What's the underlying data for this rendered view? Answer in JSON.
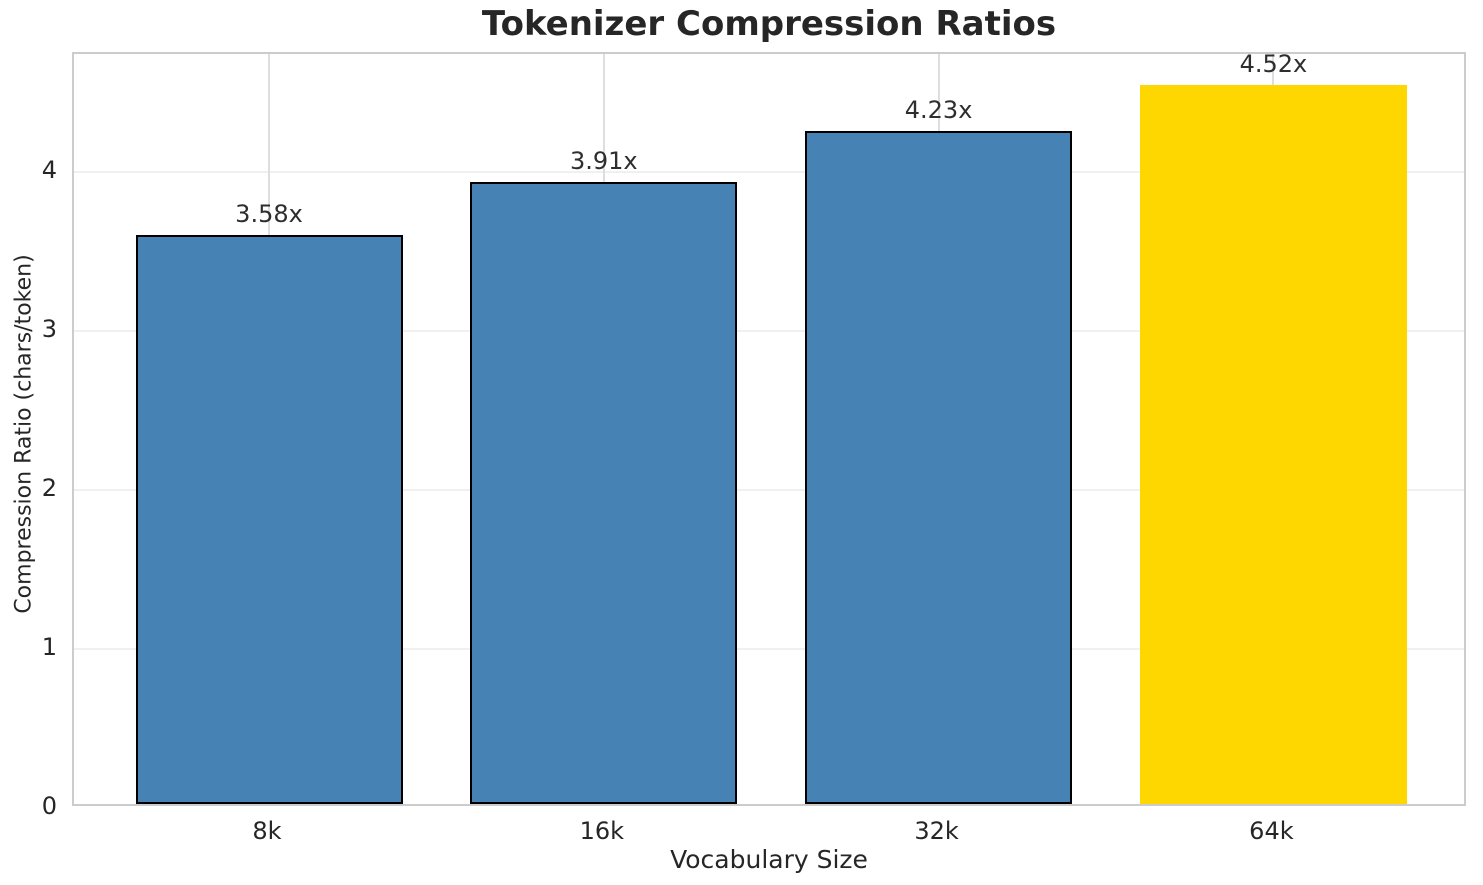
{
  "chart_data": {
    "type": "bar",
    "title": "Tokenizer Compression Ratios",
    "xlabel": "Vocabulary Size",
    "ylabel": "Compression Ratio (chars/token)",
    "categories": [
      "8k",
      "16k",
      "32k",
      "64k"
    ],
    "values": [
      3.58,
      3.91,
      4.23,
      4.52
    ],
    "bar_labels": [
      "3.58x",
      "3.91x",
      "4.23x",
      "4.52x"
    ],
    "bar_colors": [
      "#4682b4",
      "#4682b4",
      "#4682b4",
      "#ffd700"
    ],
    "bar_edge_colors": [
      "#000000",
      "#000000",
      "#000000",
      "none"
    ],
    "base_color": "#4682b4",
    "highlight_color": "#ffd700",
    "yticks": [
      0,
      1,
      2,
      3,
      4
    ],
    "ylim": [
      0,
      4.74
    ],
    "grid": true,
    "legend_position": "none",
    "text_color": "#262626",
    "spine_color": "#cccccc"
  }
}
